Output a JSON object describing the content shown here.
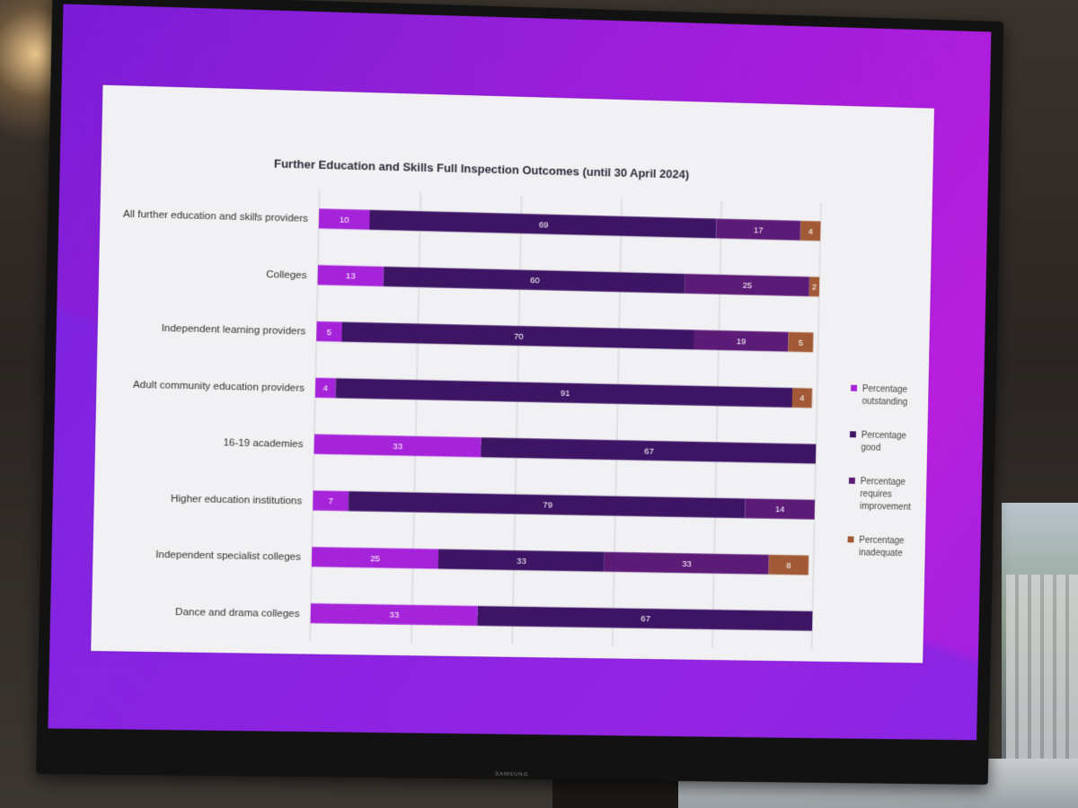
{
  "device": {
    "brand": "SAMSUNG"
  },
  "chart_data": {
    "type": "bar",
    "orientation": "horizontal",
    "stacked": true,
    "title": "Further Education and Skills Full Inspection Outcomes (until 30 April 2024)",
    "categories": [
      "All further education and skills providers",
      "Colleges",
      "Independent learning providers",
      "Adult community education providers",
      "16-19 academies",
      "Higher education institutions",
      "Independent specialist colleges",
      "Dance and drama colleges"
    ],
    "series": [
      {
        "name": "Percentage outstanding",
        "color": "#a524d9",
        "values": [
          10,
          13,
          5,
          4,
          33,
          7,
          25,
          33
        ]
      },
      {
        "name": "Percentage good",
        "color": "#3e1565",
        "values": [
          69,
          60,
          70,
          91,
          67,
          79,
          33,
          67
        ]
      },
      {
        "name": "Percentage requires improvement",
        "color": "#5d1b78",
        "values": [
          17,
          25,
          19,
          0,
          0,
          14,
          33,
          0
        ]
      },
      {
        "name": "Percentage inadequate",
        "color": "#a15a35",
        "values": [
          4,
          2,
          5,
          4,
          0,
          0,
          8,
          0
        ]
      }
    ],
    "xlim": [
      0,
      100
    ],
    "grid": true,
    "legend_position": "right"
  }
}
